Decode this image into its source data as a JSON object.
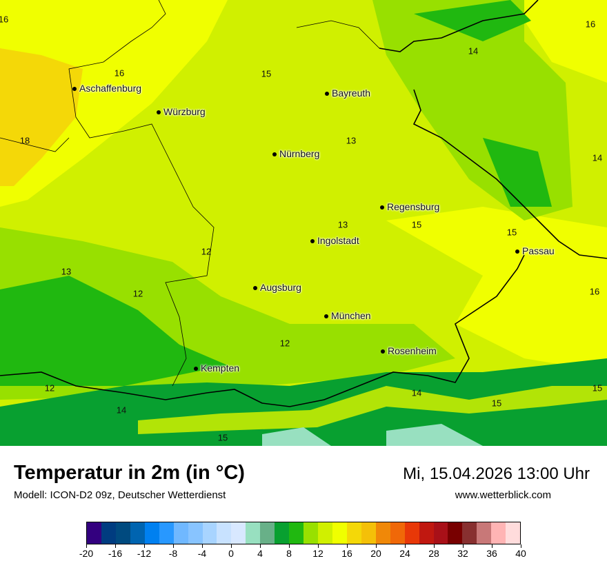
{
  "header": {
    "title": "Temperatur in 2m (in °C)",
    "model": "Modell: ICON-D2 09z, Deutscher Wetterdienst",
    "datetime": "Mi, 15.04.2026 13:00 Uhr",
    "website": "www.wetterblick.com"
  },
  "cities": [
    {
      "name": "Aschaffenburg"
    },
    {
      "name": "Würzburg"
    },
    {
      "name": "Bayreuth"
    },
    {
      "name": "Nürnberg"
    },
    {
      "name": "Regensburg"
    },
    {
      "name": "Ingolstadt"
    },
    {
      "name": "Passau"
    },
    {
      "name": "Augsburg"
    },
    {
      "name": "München"
    },
    {
      "name": "Rosenheim"
    },
    {
      "name": "Kempten"
    }
  ],
  "values": [
    "16",
    "16",
    "14",
    "15",
    "16",
    "18",
    "13",
    "14",
    "15",
    "13",
    "15",
    "12",
    "13",
    "12",
    "16",
    "12",
    "12",
    "14",
    "15",
    "15",
    "14",
    "15"
  ],
  "legend": {
    "unit": "°C",
    "colors": [
      "#33007f",
      "#003c80",
      "#004a7f",
      "#0064b0",
      "#0080f0",
      "#2898ff",
      "#70b8ff",
      "#88c4ff",
      "#a8d4ff",
      "#c8e2ff",
      "#d8e8ff",
      "#98e0c0",
      "#68b088",
      "#08a030",
      "#20b810",
      "#98e000",
      "#d0f000",
      "#f0ff00",
      "#f4d808",
      "#f4c008",
      "#f08808",
      "#f06808",
      "#e83808",
      "#c01810",
      "#a81018",
      "#780000",
      "#883030",
      "#c87878",
      "#ffb4b4",
      "#ffdcdc"
    ],
    "ticks": [
      "-20",
      "-16",
      "-12",
      "-8",
      "-4",
      "0",
      "4",
      "8",
      "12",
      "16",
      "20",
      "24",
      "28",
      "32",
      "36",
      "40"
    ]
  }
}
